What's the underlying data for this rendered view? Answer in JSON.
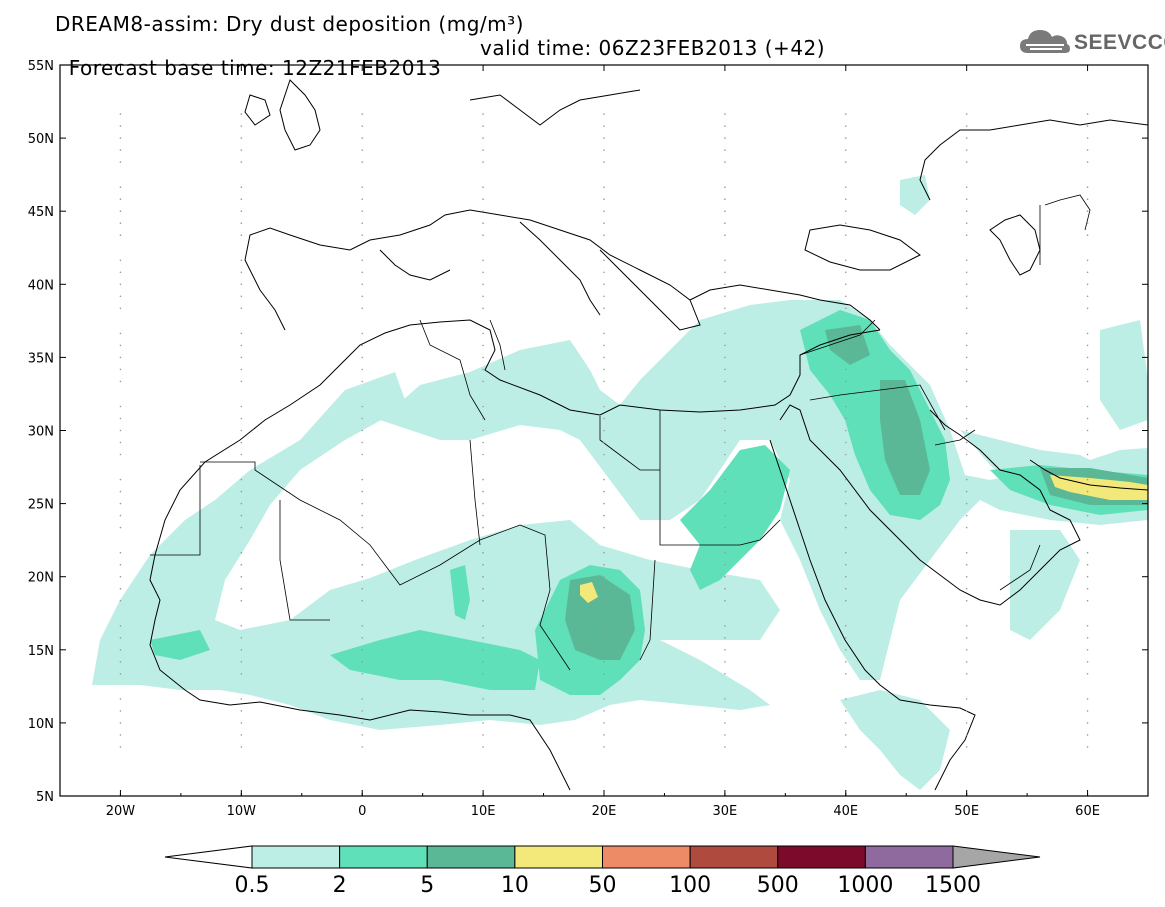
{
  "header": {
    "title_line1": "DREAM8-assim: Dry dust deposition (mg/m³)",
    "base_time": "Forecast base time: 12Z21FEB2013",
    "valid_time": "valid time: 06Z23FEB2013 (+42)"
  },
  "logo": {
    "text": "SEEVCCC",
    "icon": "cloud-icon"
  },
  "map": {
    "lon_range": [
      -25,
      65
    ],
    "lat_range": [
      5,
      55
    ],
    "lat_labels": [
      "55N",
      "50N",
      "45N",
      "40N",
      "35N",
      "30N",
      "25N",
      "20N",
      "15N",
      "10N",
      "5N"
    ],
    "lon_labels": [
      "20W",
      "10W",
      "0",
      "10E",
      "20E",
      "30E",
      "40E",
      "50E",
      "60E"
    ]
  },
  "colorbar": {
    "levels": [
      "0.5",
      "2",
      "5",
      "10",
      "50",
      "100",
      "500",
      "1000",
      "1500"
    ],
    "colors": [
      "#ffffff",
      "#bdeee6",
      "#5fe0b8",
      "#5bb896",
      "#f2e97a",
      "#ed8b66",
      "#ae4a3e",
      "#7c0b2b",
      "#8e6a9e",
      "#a6a6a6"
    ]
  }
}
